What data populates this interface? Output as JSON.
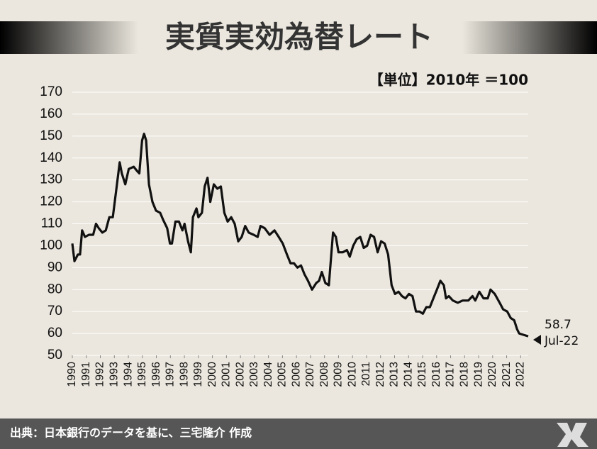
{
  "chart_data": {
    "type": "line",
    "title": "実質実効為替レート",
    "subtitle": "【単位】2010年 ＝100",
    "source": "出典：日本銀行のデータを基に、三宅隆介 作成",
    "annotations": [
      "58.7",
      "Jul-22"
    ],
    "series": [
      {
        "name": "実質実効為替レート",
        "color": "#111111",
        "x": [
          1990.0,
          1990.15,
          1990.4,
          1990.55,
          1990.7,
          1990.9,
          1991.19,
          1991.49,
          1991.69,
          1991.89,
          1992.14,
          1992.39,
          1992.64,
          1992.89,
          1993.13,
          1993.38,
          1993.53,
          1993.78,
          1994.03,
          1994.38,
          1994.63,
          1994.78,
          1994.98,
          1995.12,
          1995.27,
          1995.47,
          1995.72,
          1995.97,
          1996.27,
          1996.47,
          1996.77,
          1996.97,
          1997.11,
          1997.36,
          1997.61,
          1997.86,
          1998.01,
          1998.26,
          1998.46,
          1998.61,
          1998.86,
          1999.0,
          1999.25,
          1999.45,
          1999.65,
          1999.85,
          2000.1,
          2000.35,
          2000.6,
          2000.85,
          2001.09,
          2001.34,
          2001.59,
          2001.84,
          2002.09,
          2002.34,
          2002.59,
          2002.94,
          2003.23,
          2003.43,
          2003.73,
          2004.08,
          2004.43,
          2004.73,
          2005.02,
          2005.32,
          2005.57,
          2005.82,
          2006.07,
          2006.32,
          2006.57,
          2006.82,
          2007.11,
          2007.41,
          2007.61,
          2007.81,
          2008.06,
          2008.31,
          2008.61,
          2008.81,
          2009.0,
          2009.3,
          2009.6,
          2009.8,
          2010.05,
          2010.3,
          2010.55,
          2010.8,
          2011.04,
          2011.29,
          2011.54,
          2011.79,
          2012.04,
          2012.29,
          2012.54,
          2012.79,
          2013.03,
          2013.28,
          2013.53,
          2013.78,
          2014.03,
          2014.28,
          2014.53,
          2014.78,
          2015.02,
          2015.27,
          2015.52,
          2015.77,
          2016.02,
          2016.27,
          2016.52,
          2016.67,
          2016.87,
          2017.16,
          2017.51,
          2017.86,
          2018.26,
          2018.56,
          2018.76,
          2019.05,
          2019.35,
          2019.65,
          2019.85,
          2020.15,
          2020.5,
          2020.75,
          2021.04,
          2021.29,
          2021.54,
          2021.74,
          2021.89,
          2022.54
        ],
        "values": [
          101,
          93,
          96,
          96,
          107,
          104,
          105,
          105,
          110,
          108,
          106,
          107,
          113,
          113,
          125,
          138,
          133,
          128,
          135,
          136,
          134,
          133,
          148,
          151,
          148,
          128,
          120,
          116,
          115,
          112,
          108,
          101,
          101,
          111,
          111,
          107,
          110,
          102,
          97,
          113,
          117,
          113,
          115,
          127,
          131,
          120,
          128,
          126,
          127,
          115,
          111,
          113,
          110,
          102,
          104,
          109,
          106,
          105,
          104,
          109,
          108,
          105,
          107,
          104,
          101,
          96,
          92,
          92,
          90,
          91,
          87,
          84,
          80,
          83,
          84,
          88,
          83,
          82,
          106,
          104,
          97,
          97,
          98,
          95,
          100,
          103,
          104,
          99,
          100,
          105,
          104,
          97,
          102,
          101,
          96,
          82,
          78,
          79,
          77,
          76,
          78,
          77,
          70,
          70,
          69,
          72,
          72,
          76,
          80,
          84,
          82,
          76,
          77,
          75,
          74,
          75,
          75,
          77,
          75,
          79,
          76,
          76,
          80,
          78,
          74,
          71,
          70,
          67,
          66,
          62,
          60,
          58.7
        ]
      }
    ],
    "xlim": [
      1990,
      2022.54
    ],
    "xticks": [
      1990,
      1991,
      1992,
      1993,
      1994,
      1995,
      1996,
      1997,
      1998,
      1999,
      2000,
      2001,
      2002,
      2003,
      2004,
      2005,
      2006,
      2007,
      2008,
      2009,
      2010,
      2011,
      2012,
      2013,
      2014,
      2015,
      2016,
      2017,
      2018,
      2019,
      2020,
      2021,
      2022
    ],
    "ylim": [
      50,
      170
    ],
    "yticks": [
      50,
      60,
      70,
      80,
      90,
      100,
      110,
      120,
      130,
      140,
      150,
      160,
      170
    ],
    "grid": true
  }
}
